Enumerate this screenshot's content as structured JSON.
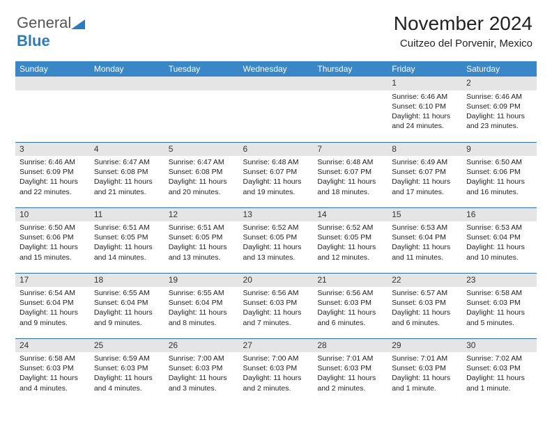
{
  "logo": {
    "text_general": "General",
    "text_blue": "Blue"
  },
  "header": {
    "title": "November 2024",
    "subtitle": "Cuitzeo del Porvenir, Mexico"
  },
  "colors": {
    "header_bg": "#3a87c8",
    "header_text": "#ffffff",
    "row_divider": "#2b6ca8",
    "daynum_bg": "#e5e5e5",
    "text": "#222222",
    "logo_gray": "#555555",
    "logo_blue": "#2b7bbf",
    "background": "#ffffff"
  },
  "typography": {
    "title_fontsize": 28,
    "subtitle_fontsize": 15,
    "dayheader_fontsize": 12,
    "daynum_fontsize": 12,
    "body_fontsize": 10.5
  },
  "day_names": [
    "Sunday",
    "Monday",
    "Tuesday",
    "Wednesday",
    "Thursday",
    "Friday",
    "Saturday"
  ],
  "weeks": [
    [
      null,
      null,
      null,
      null,
      null,
      {
        "n": "1",
        "sunrise": "Sunrise: 6:46 AM",
        "sunset": "Sunset: 6:10 PM",
        "daylight": "Daylight: 11 hours and 24 minutes."
      },
      {
        "n": "2",
        "sunrise": "Sunrise: 6:46 AM",
        "sunset": "Sunset: 6:09 PM",
        "daylight": "Daylight: 11 hours and 23 minutes."
      }
    ],
    [
      {
        "n": "3",
        "sunrise": "Sunrise: 6:46 AM",
        "sunset": "Sunset: 6:09 PM",
        "daylight": "Daylight: 11 hours and 22 minutes."
      },
      {
        "n": "4",
        "sunrise": "Sunrise: 6:47 AM",
        "sunset": "Sunset: 6:08 PM",
        "daylight": "Daylight: 11 hours and 21 minutes."
      },
      {
        "n": "5",
        "sunrise": "Sunrise: 6:47 AM",
        "sunset": "Sunset: 6:08 PM",
        "daylight": "Daylight: 11 hours and 20 minutes."
      },
      {
        "n": "6",
        "sunrise": "Sunrise: 6:48 AM",
        "sunset": "Sunset: 6:07 PM",
        "daylight": "Daylight: 11 hours and 19 minutes."
      },
      {
        "n": "7",
        "sunrise": "Sunrise: 6:48 AM",
        "sunset": "Sunset: 6:07 PM",
        "daylight": "Daylight: 11 hours and 18 minutes."
      },
      {
        "n": "8",
        "sunrise": "Sunrise: 6:49 AM",
        "sunset": "Sunset: 6:07 PM",
        "daylight": "Daylight: 11 hours and 17 minutes."
      },
      {
        "n": "9",
        "sunrise": "Sunrise: 6:50 AM",
        "sunset": "Sunset: 6:06 PM",
        "daylight": "Daylight: 11 hours and 16 minutes."
      }
    ],
    [
      {
        "n": "10",
        "sunrise": "Sunrise: 6:50 AM",
        "sunset": "Sunset: 6:06 PM",
        "daylight": "Daylight: 11 hours and 15 minutes."
      },
      {
        "n": "11",
        "sunrise": "Sunrise: 6:51 AM",
        "sunset": "Sunset: 6:05 PM",
        "daylight": "Daylight: 11 hours and 14 minutes."
      },
      {
        "n": "12",
        "sunrise": "Sunrise: 6:51 AM",
        "sunset": "Sunset: 6:05 PM",
        "daylight": "Daylight: 11 hours and 13 minutes."
      },
      {
        "n": "13",
        "sunrise": "Sunrise: 6:52 AM",
        "sunset": "Sunset: 6:05 PM",
        "daylight": "Daylight: 11 hours and 13 minutes."
      },
      {
        "n": "14",
        "sunrise": "Sunrise: 6:52 AM",
        "sunset": "Sunset: 6:05 PM",
        "daylight": "Daylight: 11 hours and 12 minutes."
      },
      {
        "n": "15",
        "sunrise": "Sunrise: 6:53 AM",
        "sunset": "Sunset: 6:04 PM",
        "daylight": "Daylight: 11 hours and 11 minutes."
      },
      {
        "n": "16",
        "sunrise": "Sunrise: 6:53 AM",
        "sunset": "Sunset: 6:04 PM",
        "daylight": "Daylight: 11 hours and 10 minutes."
      }
    ],
    [
      {
        "n": "17",
        "sunrise": "Sunrise: 6:54 AM",
        "sunset": "Sunset: 6:04 PM",
        "daylight": "Daylight: 11 hours and 9 minutes."
      },
      {
        "n": "18",
        "sunrise": "Sunrise: 6:55 AM",
        "sunset": "Sunset: 6:04 PM",
        "daylight": "Daylight: 11 hours and 9 minutes."
      },
      {
        "n": "19",
        "sunrise": "Sunrise: 6:55 AM",
        "sunset": "Sunset: 6:04 PM",
        "daylight": "Daylight: 11 hours and 8 minutes."
      },
      {
        "n": "20",
        "sunrise": "Sunrise: 6:56 AM",
        "sunset": "Sunset: 6:03 PM",
        "daylight": "Daylight: 11 hours and 7 minutes."
      },
      {
        "n": "21",
        "sunrise": "Sunrise: 6:56 AM",
        "sunset": "Sunset: 6:03 PM",
        "daylight": "Daylight: 11 hours and 6 minutes."
      },
      {
        "n": "22",
        "sunrise": "Sunrise: 6:57 AM",
        "sunset": "Sunset: 6:03 PM",
        "daylight": "Daylight: 11 hours and 6 minutes."
      },
      {
        "n": "23",
        "sunrise": "Sunrise: 6:58 AM",
        "sunset": "Sunset: 6:03 PM",
        "daylight": "Daylight: 11 hours and 5 minutes."
      }
    ],
    [
      {
        "n": "24",
        "sunrise": "Sunrise: 6:58 AM",
        "sunset": "Sunset: 6:03 PM",
        "daylight": "Daylight: 11 hours and 4 minutes."
      },
      {
        "n": "25",
        "sunrise": "Sunrise: 6:59 AM",
        "sunset": "Sunset: 6:03 PM",
        "daylight": "Daylight: 11 hours and 4 minutes."
      },
      {
        "n": "26",
        "sunrise": "Sunrise: 7:00 AM",
        "sunset": "Sunset: 6:03 PM",
        "daylight": "Daylight: 11 hours and 3 minutes."
      },
      {
        "n": "27",
        "sunrise": "Sunrise: 7:00 AM",
        "sunset": "Sunset: 6:03 PM",
        "daylight": "Daylight: 11 hours and 2 minutes."
      },
      {
        "n": "28",
        "sunrise": "Sunrise: 7:01 AM",
        "sunset": "Sunset: 6:03 PM",
        "daylight": "Daylight: 11 hours and 2 minutes."
      },
      {
        "n": "29",
        "sunrise": "Sunrise: 7:01 AM",
        "sunset": "Sunset: 6:03 PM",
        "daylight": "Daylight: 11 hours and 1 minute."
      },
      {
        "n": "30",
        "sunrise": "Sunrise: 7:02 AM",
        "sunset": "Sunset: 6:03 PM",
        "daylight": "Daylight: 11 hours and 1 minute."
      }
    ]
  ]
}
